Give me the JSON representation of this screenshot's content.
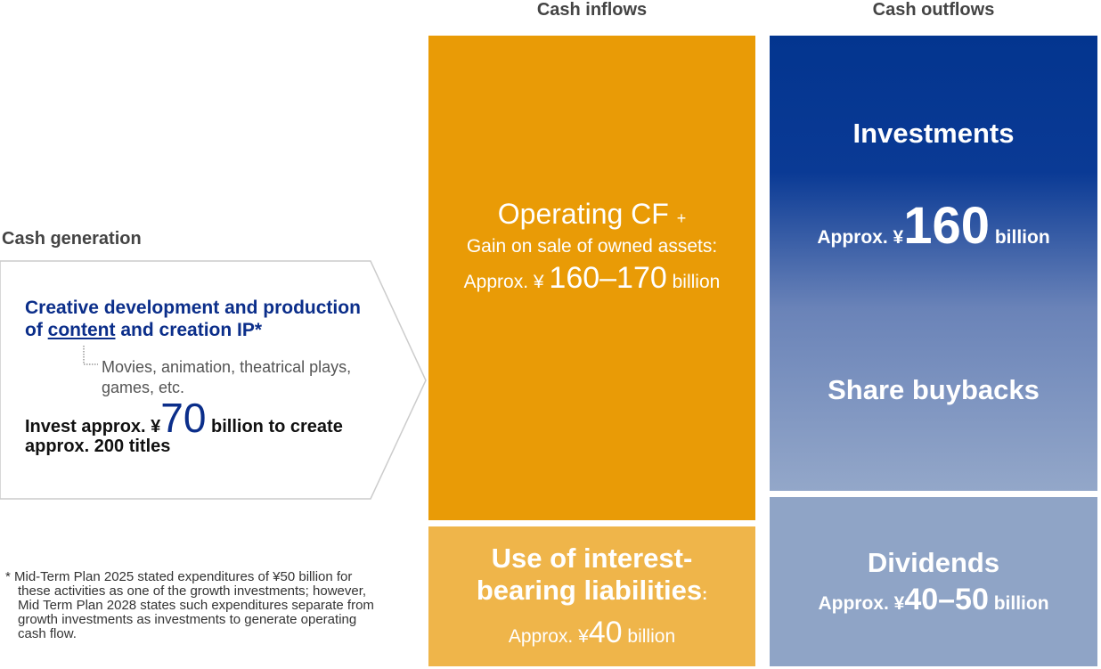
{
  "header": {
    "inflows": "Cash inflows",
    "outflows": "Cash outflows"
  },
  "generation": {
    "title": "Cash generation",
    "heading_a": "Creative development and production of",
    "heading_underlined": "content",
    "heading_b": "and creation IP*",
    "examples": "Movies, animation, theatrical plays, games, etc.",
    "invest_a": "Invest approx. ¥",
    "invest_amount": "70",
    "invest_b": "billion to create approx. 200 titles"
  },
  "operating": {
    "title": "Operating CF",
    "plus": "+",
    "subtitle": "Gain on sale of owned assets:",
    "prefix": "Approx. ¥",
    "amount": "160–170",
    "unit": "billion"
  },
  "liabilities": {
    "title": "Use of interest-bearing liabilities",
    "colon": ":",
    "prefix": "Approx. ¥",
    "amount": "40",
    "unit": "billion"
  },
  "investments": {
    "title": "Investments",
    "prefix": "Approx. ¥",
    "amount": "160",
    "unit": "billion"
  },
  "buybacks": {
    "title": "Share buybacks"
  },
  "dividends": {
    "title": "Dividends",
    "prefix": "Approx. ¥",
    "amount": "40–50",
    "unit": "billion"
  },
  "footnote": "* Mid-Term Plan 2025 stated expenditures of ¥50 billion for these activities as one of the growth investments; however, Mid Term Plan 2028 states such expenditures separate from growth investments as investments to generate operating cash flow."
}
